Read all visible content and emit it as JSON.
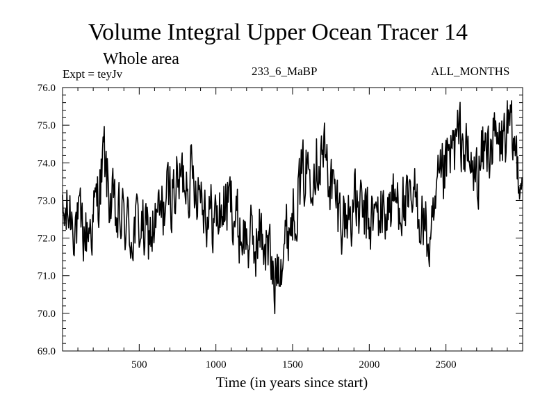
{
  "chart_data": {
    "type": "line",
    "title": "Volume Integral Upper Ocean Tracer 14",
    "subtitle": "Whole area",
    "expt_label": "Expt = teyJv",
    "run_label": "233_6_MaBP",
    "period_label": "ALL_MONTHS",
    "xlabel": "Time (in years since start)",
    "ylabel": "",
    "xlim": [
      0,
      3000
    ],
    "ylim": [
      69.0,
      76.0
    ],
    "xticks": [
      500,
      1000,
      1500,
      2000,
      2500
    ],
    "xtick_labels": [
      "500",
      "1000",
      "1500",
      "2000",
      "2500"
    ],
    "yticks": [
      69.0,
      70.0,
      71.0,
      72.0,
      73.0,
      74.0,
      75.0,
      76.0
    ],
    "ytick_labels": [
      "69.0",
      "70.0",
      "71.0",
      "72.0",
      "73.0",
      "74.0",
      "75.0",
      "76.0"
    ],
    "line_color": "#000000",
    "series": [
      {
        "name": "Volume Integral Upper Ocean Tracer 14",
        "x": [
          0,
          50,
          100,
          150,
          200,
          250,
          270,
          300,
          350,
          400,
          450,
          500,
          550,
          600,
          650,
          700,
          750,
          800,
          850,
          900,
          950,
          1000,
          1050,
          1100,
          1150,
          1200,
          1250,
          1300,
          1350,
          1380,
          1400,
          1450,
          1500,
          1550,
          1600,
          1650,
          1700,
          1750,
          1800,
          1850,
          1900,
          1950,
          2000,
          2050,
          2100,
          2150,
          2200,
          2250,
          2300,
          2350,
          2400,
          2450,
          2500,
          2550,
          2600,
          2650,
          2700,
          2750,
          2800,
          2850,
          2900,
          2950,
          3000
        ],
        "y": [
          72.4,
          72.7,
          72.3,
          72.1,
          72.5,
          73.5,
          74.2,
          73.2,
          72.4,
          72.5,
          72.1,
          72.4,
          72.0,
          72.3,
          72.7,
          73.2,
          73.4,
          73.7,
          73.6,
          73.4,
          72.6,
          72.5,
          72.8,
          73.0,
          72.2,
          72.0,
          71.8,
          72.1,
          71.6,
          70.6,
          71.4,
          71.9,
          72.7,
          73.4,
          73.9,
          74.1,
          74.3,
          73.5,
          72.7,
          72.5,
          72.9,
          72.6,
          72.4,
          72.6,
          72.7,
          72.9,
          73.1,
          72.6,
          73.0,
          72.5,
          71.6,
          73.2,
          73.8,
          74.4,
          74.7,
          73.9,
          73.6,
          74.3,
          74.6,
          74.4,
          74.9,
          74.3,
          73.6
        ]
      }
    ]
  }
}
